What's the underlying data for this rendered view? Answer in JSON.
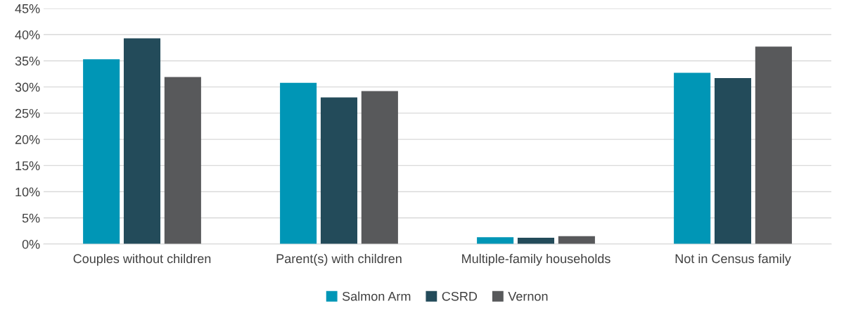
{
  "chart_data": {
    "type": "bar",
    "categories": [
      "Couples without children",
      "Parent(s) with children",
      "Multiple-family households",
      "Not in Census family"
    ],
    "series": [
      {
        "name": "Salmon Arm",
        "color": "#0096b6",
        "values": [
          35.3,
          30.8,
          1.3,
          32.7
        ]
      },
      {
        "name": "CSRD",
        "color": "#234b5a",
        "values": [
          39.3,
          28.0,
          1.2,
          31.7
        ]
      },
      {
        "name": "Vernon",
        "color": "#58595b",
        "values": [
          31.9,
          29.2,
          1.5,
          37.7
        ]
      }
    ],
    "ylim": [
      0,
      45
    ],
    "yticks": [
      {
        "value": 0,
        "label": "0%"
      },
      {
        "value": 5,
        "label": "5%"
      },
      {
        "value": 10,
        "label": "10%"
      },
      {
        "value": 15,
        "label": "15%"
      },
      {
        "value": 20,
        "label": "20%"
      },
      {
        "value": 25,
        "label": "25%"
      },
      {
        "value": 30,
        "label": "30%"
      },
      {
        "value": 35,
        "label": "35%"
      },
      {
        "value": 40,
        "label": "40%"
      },
      {
        "value": 45,
        "label": "45%"
      }
    ],
    "grid": "y",
    "legend": "bottom"
  }
}
